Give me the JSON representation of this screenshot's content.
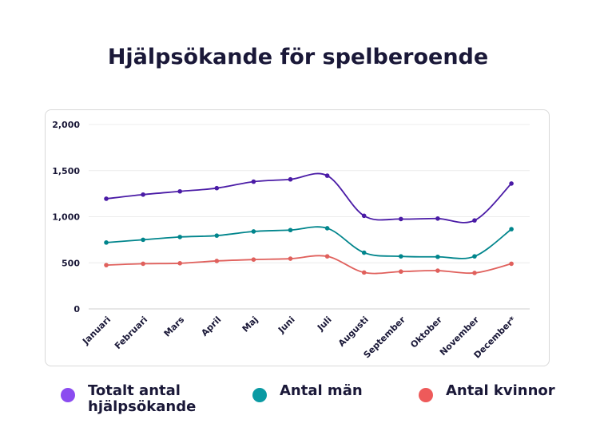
{
  "title": "Hjälpsökande för spelberoende",
  "chart_data": {
    "type": "line",
    "categories": [
      "Januari",
      "Februari",
      "Mars",
      "April",
      "Maj",
      "Juni",
      "Juli",
      "Augusti",
      "September",
      "Oktober",
      "November",
      "December*"
    ],
    "series": [
      {
        "name": "Totalt antal hjälpsökande",
        "color": "#4a1ba6",
        "values": [
          1195,
          1240,
          1275,
          1310,
          1380,
          1405,
          1445,
          1010,
          975,
          980,
          960,
          1360
        ]
      },
      {
        "name": "Antal män",
        "color": "#00858c",
        "values": [
          720,
          750,
          780,
          795,
          840,
          855,
          875,
          610,
          570,
          565,
          570,
          865
        ]
      },
      {
        "name": "Antal kvinnor",
        "color": "#e0605c",
        "values": [
          475,
          490,
          495,
          520,
          535,
          545,
          570,
          395,
          405,
          415,
          390,
          490
        ]
      }
    ],
    "ylim": [
      0,
      2000
    ],
    "yticks": [
      0,
      500,
      1000,
      1500,
      2000
    ],
    "ytick_labels": [
      "0",
      "500",
      "1,000",
      "1,500",
      "2,000"
    ],
    "grid": true,
    "legend_position": "bottom"
  },
  "legend": [
    {
      "label": "Totalt antal hjälpsökande",
      "color": "#8b4cf0"
    },
    {
      "label": "Antal män",
      "color": "#0a9aa3"
    },
    {
      "label": "Antal kvinnor",
      "color": "#ee5a5a"
    }
  ]
}
